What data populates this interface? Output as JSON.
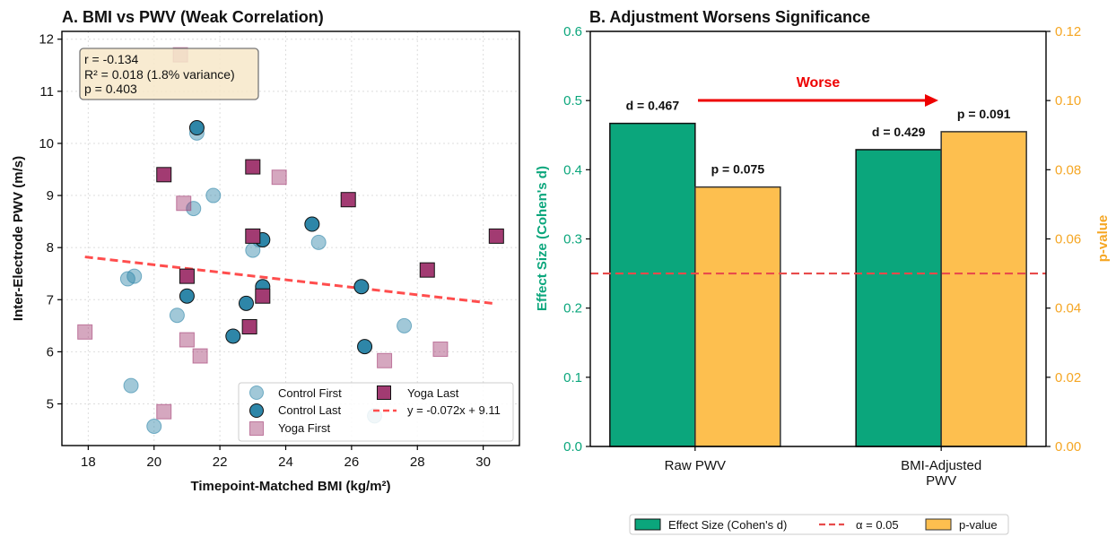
{
  "chart_data": [
    {
      "type": "scatter",
      "title": "A. BMI vs PWV (Weak Correlation)",
      "xlabel": "Timepoint-Matched BMI (kg/m²)",
      "ylabel": "Inter-Electrode PWV (m/s)",
      "xlim": [
        17.2,
        31.1
      ],
      "ylim": [
        4.2,
        12.15
      ],
      "xticks": [
        18,
        20,
        22,
        24,
        26,
        28,
        30
      ],
      "yticks": [
        5,
        6,
        7,
        8,
        9,
        10,
        11,
        12
      ],
      "grid": true,
      "stats_box": [
        "r = -0.134",
        "R² = 0.018 (1.8% variance)",
        "p = 0.403"
      ],
      "legend": {
        "placement": "lower right",
        "columns": 2
      },
      "series": [
        {
          "name": "Control First",
          "marker": "circle",
          "color": "#2e86a8",
          "alpha": 0.45,
          "points": [
            [
              21.3,
              10.2
            ],
            [
              21.8,
              9.0
            ],
            [
              21.2,
              8.75
            ],
            [
              23.0,
              7.95
            ],
            [
              25.0,
              8.1
            ],
            [
              19.2,
              7.4
            ],
            [
              19.4,
              7.45
            ],
            [
              20.7,
              6.7
            ],
            [
              19.3,
              5.35
            ],
            [
              20.0,
              4.57
            ],
            [
              27.6,
              6.5
            ],
            [
              26.7,
              4.77
            ],
            [
              23.2,
              8.15
            ]
          ]
        },
        {
          "name": "Control Last",
          "marker": "circle",
          "color": "#2e86a8",
          "alpha": 1.0,
          "points": [
            [
              21.3,
              10.3
            ],
            [
              24.8,
              8.45
            ],
            [
              23.3,
              8.15
            ],
            [
              23.3,
              7.25
            ],
            [
              26.3,
              7.25
            ],
            [
              21.0,
              7.07
            ],
            [
              22.8,
              6.93
            ],
            [
              22.4,
              6.3
            ],
            [
              26.4,
              6.1
            ]
          ]
        },
        {
          "name": "Yoga First",
          "marker": "square",
          "color": "#a23b72",
          "alpha": 0.45,
          "points": [
            [
              20.8,
              11.7
            ],
            [
              23.8,
              9.35
            ],
            [
              20.9,
              8.85
            ],
            [
              17.9,
              6.38
            ],
            [
              21.0,
              6.23
            ],
            [
              21.4,
              5.92
            ],
            [
              27.0,
              5.83
            ],
            [
              28.7,
              6.05
            ],
            [
              20.3,
              4.85
            ]
          ]
        },
        {
          "name": "Yoga Last",
          "marker": "square",
          "color": "#a23b72",
          "alpha": 1.0,
          "points": [
            [
              20.3,
              9.4
            ],
            [
              23.0,
              9.55
            ],
            [
              25.9,
              8.92
            ],
            [
              23.0,
              8.22
            ],
            [
              30.4,
              8.22
            ],
            [
              21.0,
              7.45
            ],
            [
              28.3,
              7.57
            ],
            [
              23.3,
              7.07
            ],
            [
              22.9,
              6.48
            ]
          ]
        }
      ],
      "fit_line": {
        "name": "y = -0.072x + 9.11",
        "slope": -0.072,
        "intercept": 9.11,
        "x_range": [
          17.9,
          30.4
        ],
        "color": "#ff4d4d"
      }
    },
    {
      "type": "bar",
      "title": "B. Adjustment Worsens Significance",
      "categories": [
        "Raw PWV",
        "BMI-Adjusted\nPWV"
      ],
      "ylabel": "Effect Size (Cohen's d)",
      "y2label": "p-value",
      "ylim": [
        0,
        0.6
      ],
      "y2lim": [
        0,
        0.12
      ],
      "yticks": [
        "0.0",
        "0.1",
        "0.2",
        "0.3",
        "0.4",
        "0.5",
        "0.6"
      ],
      "y2ticks": [
        "0.00",
        "0.02",
        "0.04",
        "0.06",
        "0.08",
        "0.10",
        "0.12"
      ],
      "series": [
        {
          "name": "Effect Size (Cohen's d)",
          "axis": "left",
          "color": "#0ba67c",
          "values": [
            0.467,
            0.429
          ],
          "labels": [
            "d = 0.467",
            "d = 0.429"
          ]
        },
        {
          "name": "p-value",
          "axis": "right",
          "color": "#fdbf4f",
          "values": [
            0.075,
            0.091
          ],
          "labels": [
            "p = 0.075",
            "p = 0.091"
          ]
        }
      ],
      "reference_line": {
        "name": "α = 0.05",
        "axis": "right",
        "value": 0.05,
        "color": "#e84b4b"
      },
      "annotation": {
        "text": "Worse",
        "color": "#ee0000"
      },
      "left_axis_color": "#0ba67c",
      "right_axis_color": "#f5a623",
      "legend": {
        "placement": "bottom-center",
        "columns": 3
      }
    }
  ]
}
